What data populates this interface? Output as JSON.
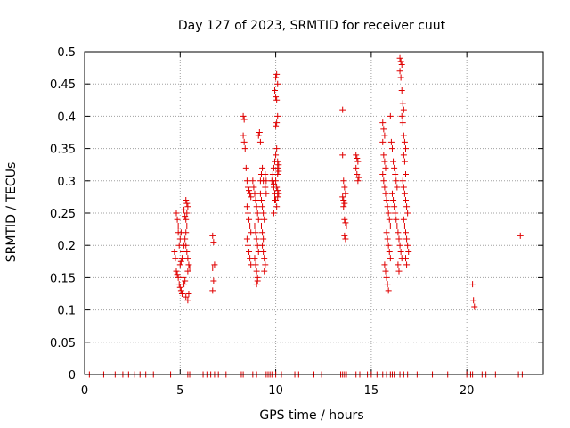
{
  "chart_data": {
    "type": "scatter",
    "title": "Day 127 of 2023, SRMTID for receiver cuut",
    "xlabel": "GPS time / hours",
    "ylabel": "SRMTID / TECUs",
    "xlim": [
      0,
      24
    ],
    "ylim": [
      0,
      0.5
    ],
    "x_ticks": [
      0,
      5,
      10,
      15,
      20
    ],
    "x_tick_labels": [
      "0",
      "5",
      "10",
      "15",
      "20"
    ],
    "y_ticks": [
      0,
      0.05,
      0.1,
      0.15,
      0.2,
      0.25,
      0.3,
      0.35,
      0.4,
      0.45,
      0.5
    ],
    "y_tick_labels": [
      "0",
      "0.05",
      "0.1",
      "0.15",
      "0.2",
      "0.25",
      "0.3",
      "0.35",
      "0.4",
      "0.45",
      "0.5"
    ],
    "grid": true,
    "marker": "plus",
    "series": [
      {
        "color": "#e00000",
        "points": [
          [
            0.25,
            0
          ],
          [
            1.0,
            0
          ],
          [
            1.6,
            0
          ],
          [
            2.0,
            0
          ],
          [
            2.3,
            0
          ],
          [
            2.6,
            0
          ],
          [
            2.9,
            0
          ],
          [
            3.2,
            0
          ],
          [
            3.6,
            0
          ],
          [
            4.5,
            0
          ],
          [
            5.4,
            0
          ],
          [
            5.5,
            0
          ],
          [
            6.2,
            0
          ],
          [
            6.4,
            0
          ],
          [
            6.6,
            0
          ],
          [
            6.8,
            0
          ],
          [
            7.0,
            0
          ],
          [
            7.4,
            0
          ],
          [
            8.2,
            0
          ],
          [
            8.3,
            0
          ],
          [
            8.8,
            0
          ],
          [
            9.0,
            0
          ],
          [
            9.5,
            0
          ],
          [
            9.6,
            0
          ],
          [
            9.7,
            0
          ],
          [
            9.8,
            0
          ],
          [
            10.0,
            0
          ],
          [
            10.3,
            0
          ],
          [
            11.0,
            0
          ],
          [
            11.2,
            0
          ],
          [
            12.0,
            0
          ],
          [
            12.4,
            0
          ],
          [
            13.4,
            0
          ],
          [
            13.5,
            0
          ],
          [
            13.6,
            0
          ],
          [
            13.7,
            0
          ],
          [
            14.2,
            0
          ],
          [
            14.4,
            0
          ],
          [
            14.8,
            0
          ],
          [
            15.0,
            0
          ],
          [
            15.3,
            0
          ],
          [
            15.6,
            0
          ],
          [
            15.8,
            0
          ],
          [
            16.0,
            0
          ],
          [
            16.1,
            0
          ],
          [
            16.2,
            0
          ],
          [
            16.5,
            0
          ],
          [
            16.7,
            0
          ],
          [
            16.9,
            0
          ],
          [
            17.4,
            0
          ],
          [
            17.5,
            0
          ],
          [
            18.2,
            0
          ],
          [
            19.0,
            0
          ],
          [
            20.0,
            0
          ],
          [
            20.2,
            0
          ],
          [
            20.3,
            0
          ],
          [
            20.8,
            0
          ],
          [
            21.0,
            0
          ],
          [
            21.5,
            0
          ],
          [
            22.7,
            0
          ],
          [
            22.9,
            0
          ],
          [
            4.8,
            0.25
          ],
          [
            4.85,
            0.24
          ],
          [
            4.9,
            0.22
          ],
          [
            4.95,
            0.2
          ],
          [
            4.7,
            0.19
          ],
          [
            4.75,
            0.18
          ],
          [
            4.8,
            0.16
          ],
          [
            4.85,
            0.155
          ],
          [
            4.9,
            0.15
          ],
          [
            4.95,
            0.14
          ],
          [
            5.0,
            0.135
          ],
          [
            5.05,
            0.13
          ],
          [
            5.1,
            0.125
          ],
          [
            5.0,
            0.17
          ],
          [
            5.05,
            0.175
          ],
          [
            5.1,
            0.18
          ],
          [
            5.15,
            0.19
          ],
          [
            5.2,
            0.2
          ],
          [
            5.25,
            0.21
          ],
          [
            5.3,
            0.22
          ],
          [
            5.35,
            0.23
          ],
          [
            5.3,
            0.24
          ],
          [
            5.35,
            0.25
          ],
          [
            5.4,
            0.26
          ],
          [
            5.3,
            0.27
          ],
          [
            5.35,
            0.265
          ],
          [
            5.2,
            0.255
          ],
          [
            5.25,
            0.245
          ],
          [
            5.4,
            0.16
          ],
          [
            5.45,
            0.17
          ],
          [
            5.5,
            0.165
          ],
          [
            5.3,
            0.12
          ],
          [
            5.4,
            0.115
          ],
          [
            5.45,
            0.125
          ],
          [
            5.2,
            0.14
          ],
          [
            5.25,
            0.145
          ],
          [
            5.15,
            0.15
          ],
          [
            5.0,
            0.21
          ],
          [
            4.9,
            0.23
          ],
          [
            5.05,
            0.22
          ],
          [
            5.3,
            0.2
          ],
          [
            5.35,
            0.19
          ],
          [
            5.4,
            0.18
          ],
          [
            6.7,
            0.215
          ],
          [
            6.75,
            0.205
          ],
          [
            6.8,
            0.17
          ],
          [
            6.7,
            0.165
          ],
          [
            6.75,
            0.145
          ],
          [
            6.7,
            0.13
          ],
          [
            8.3,
            0.4
          ],
          [
            8.35,
            0.395
          ],
          [
            8.3,
            0.37
          ],
          [
            8.35,
            0.36
          ],
          [
            8.4,
            0.35
          ],
          [
            8.45,
            0.32
          ],
          [
            8.5,
            0.3
          ],
          [
            8.55,
            0.29
          ],
          [
            8.6,
            0.285
          ],
          [
            8.65,
            0.28
          ],
          [
            8.7,
            0.275
          ],
          [
            8.5,
            0.26
          ],
          [
            8.55,
            0.25
          ],
          [
            8.6,
            0.24
          ],
          [
            8.65,
            0.23
          ],
          [
            8.7,
            0.22
          ],
          [
            8.5,
            0.21
          ],
          [
            8.55,
            0.2
          ],
          [
            8.6,
            0.19
          ],
          [
            8.65,
            0.18
          ],
          [
            8.7,
            0.17
          ],
          [
            8.8,
            0.3
          ],
          [
            8.85,
            0.29
          ],
          [
            8.9,
            0.28
          ],
          [
            8.95,
            0.27
          ],
          [
            9.0,
            0.26
          ],
          [
            9.05,
            0.25
          ],
          [
            9.1,
            0.24
          ],
          [
            8.9,
            0.23
          ],
          [
            8.95,
            0.22
          ],
          [
            9.0,
            0.21
          ],
          [
            9.05,
            0.2
          ],
          [
            9.1,
            0.19
          ],
          [
            8.9,
            0.18
          ],
          [
            8.95,
            0.17
          ],
          [
            9.0,
            0.16
          ],
          [
            9.05,
            0.15
          ],
          [
            9.0,
            0.14
          ],
          [
            9.05,
            0.145
          ],
          [
            9.1,
            0.37
          ],
          [
            9.15,
            0.375
          ],
          [
            9.2,
            0.36
          ],
          [
            9.2,
            0.3
          ],
          [
            9.25,
            0.31
          ],
          [
            9.3,
            0.32
          ],
          [
            9.35,
            0.3
          ],
          [
            9.2,
            0.28
          ],
          [
            9.25,
            0.27
          ],
          [
            9.3,
            0.26
          ],
          [
            9.35,
            0.25
          ],
          [
            9.4,
            0.24
          ],
          [
            9.25,
            0.23
          ],
          [
            9.3,
            0.22
          ],
          [
            9.35,
            0.21
          ],
          [
            9.3,
            0.2
          ],
          [
            9.35,
            0.19
          ],
          [
            9.4,
            0.18
          ],
          [
            9.45,
            0.17
          ],
          [
            9.4,
            0.16
          ],
          [
            9.45,
            0.31
          ],
          [
            9.5,
            0.3
          ],
          [
            9.45,
            0.29
          ],
          [
            9.5,
            0.28
          ],
          [
            9.8,
            0.3
          ],
          [
            9.85,
            0.31
          ],
          [
            9.9,
            0.32
          ],
          [
            9.95,
            0.33
          ],
          [
            10.0,
            0.34
          ],
          [
            10.05,
            0.35
          ],
          [
            9.9,
            0.29
          ],
          [
            9.95,
            0.28
          ],
          [
            10.0,
            0.27
          ],
          [
            10.05,
            0.26
          ],
          [
            9.9,
            0.25
          ],
          [
            9.85,
            0.3
          ],
          [
            10.0,
            0.46
          ],
          [
            10.05,
            0.465
          ],
          [
            10.1,
            0.45
          ],
          [
            9.95,
            0.44
          ],
          [
            10.0,
            0.43
          ],
          [
            10.05,
            0.425
          ],
          [
            10.1,
            0.4
          ],
          [
            10.05,
            0.39
          ],
          [
            10.0,
            0.385
          ],
          [
            10.1,
            0.33
          ],
          [
            10.15,
            0.325
          ],
          [
            10.1,
            0.32
          ],
          [
            10.15,
            0.315
          ],
          [
            10.1,
            0.31
          ],
          [
            10.0,
            0.3
          ],
          [
            9.9,
            0.295
          ],
          [
            10.05,
            0.29
          ],
          [
            10.1,
            0.285
          ],
          [
            10.15,
            0.28
          ],
          [
            10.1,
            0.275
          ],
          [
            9.95,
            0.27
          ],
          [
            13.5,
            0.41
          ],
          [
            13.5,
            0.34
          ],
          [
            13.55,
            0.3
          ],
          [
            13.6,
            0.29
          ],
          [
            13.65,
            0.28
          ],
          [
            13.5,
            0.275
          ],
          [
            13.55,
            0.27
          ],
          [
            13.6,
            0.265
          ],
          [
            13.55,
            0.26
          ],
          [
            13.6,
            0.24
          ],
          [
            13.65,
            0.235
          ],
          [
            13.7,
            0.23
          ],
          [
            13.6,
            0.215
          ],
          [
            13.65,
            0.21
          ],
          [
            14.2,
            0.34
          ],
          [
            14.25,
            0.335
          ],
          [
            14.3,
            0.33
          ],
          [
            14.2,
            0.32
          ],
          [
            14.25,
            0.31
          ],
          [
            14.3,
            0.3
          ],
          [
            14.35,
            0.305
          ],
          [
            15.6,
            0.39
          ],
          [
            15.65,
            0.38
          ],
          [
            15.7,
            0.37
          ],
          [
            15.6,
            0.36
          ],
          [
            15.65,
            0.34
          ],
          [
            15.7,
            0.33
          ],
          [
            15.75,
            0.32
          ],
          [
            15.6,
            0.31
          ],
          [
            15.65,
            0.3
          ],
          [
            15.7,
            0.29
          ],
          [
            15.75,
            0.28
          ],
          [
            15.8,
            0.27
          ],
          [
            15.85,
            0.26
          ],
          [
            15.9,
            0.25
          ],
          [
            15.95,
            0.24
          ],
          [
            16.0,
            0.23
          ],
          [
            15.8,
            0.22
          ],
          [
            15.85,
            0.21
          ],
          [
            15.9,
            0.2
          ],
          [
            15.95,
            0.19
          ],
          [
            16.0,
            0.18
          ],
          [
            15.7,
            0.17
          ],
          [
            15.75,
            0.16
          ],
          [
            15.8,
            0.15
          ],
          [
            15.85,
            0.14
          ],
          [
            15.9,
            0.13
          ],
          [
            16.0,
            0.4
          ],
          [
            16.05,
            0.36
          ],
          [
            16.1,
            0.35
          ],
          [
            16.15,
            0.33
          ],
          [
            16.2,
            0.32
          ],
          [
            16.25,
            0.31
          ],
          [
            16.3,
            0.3
          ],
          [
            16.35,
            0.29
          ],
          [
            16.1,
            0.28
          ],
          [
            16.15,
            0.27
          ],
          [
            16.2,
            0.26
          ],
          [
            16.25,
            0.25
          ],
          [
            16.3,
            0.24
          ],
          [
            16.35,
            0.23
          ],
          [
            16.4,
            0.22
          ],
          [
            16.45,
            0.21
          ],
          [
            16.5,
            0.2
          ],
          [
            16.55,
            0.19
          ],
          [
            16.6,
            0.18
          ],
          [
            16.4,
            0.17
          ],
          [
            16.45,
            0.16
          ],
          [
            16.5,
            0.49
          ],
          [
            16.55,
            0.485
          ],
          [
            16.6,
            0.48
          ],
          [
            16.5,
            0.47
          ],
          [
            16.55,
            0.46
          ],
          [
            16.6,
            0.44
          ],
          [
            16.65,
            0.42
          ],
          [
            16.7,
            0.41
          ],
          [
            16.6,
            0.4
          ],
          [
            16.65,
            0.39
          ],
          [
            16.7,
            0.37
          ],
          [
            16.75,
            0.36
          ],
          [
            16.8,
            0.35
          ],
          [
            16.7,
            0.34
          ],
          [
            16.75,
            0.33
          ],
          [
            16.8,
            0.31
          ],
          [
            16.65,
            0.3
          ],
          [
            16.7,
            0.29
          ],
          [
            16.75,
            0.28
          ],
          [
            16.8,
            0.27
          ],
          [
            16.85,
            0.26
          ],
          [
            16.9,
            0.25
          ],
          [
            16.7,
            0.24
          ],
          [
            16.75,
            0.23
          ],
          [
            16.8,
            0.22
          ],
          [
            16.85,
            0.21
          ],
          [
            16.9,
            0.2
          ],
          [
            16.95,
            0.19
          ],
          [
            16.8,
            0.18
          ],
          [
            16.85,
            0.17
          ],
          [
            20.3,
            0.14
          ],
          [
            20.35,
            0.115
          ],
          [
            20.4,
            0.105
          ],
          [
            22.8,
            0.215
          ]
        ]
      }
    ]
  }
}
